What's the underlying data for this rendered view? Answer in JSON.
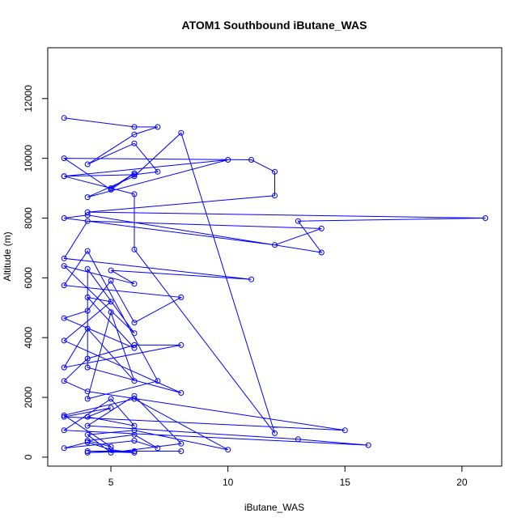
{
  "chart_data": {
    "type": "line",
    "title": "ATOM1 Southbound iButane_WAS",
    "xlabel": "iButane_WAS",
    "ylabel": "Altitude (m)",
    "xlim": [
      2.3,
      21.7
    ],
    "ylim": [
      -300,
      13700
    ],
    "x_ticks": [
      5,
      10,
      15,
      20
    ],
    "y_ticks": [
      0,
      2000,
      4000,
      6000,
      8000,
      10000,
      12000
    ],
    "grid": false,
    "legend": "none",
    "color": "#0000ff",
    "marker": "open-circle",
    "series": [
      {
        "x": [
          3,
          6,
          7,
          6,
          4,
          6,
          7,
          6,
          3,
          10,
          4,
          6,
          8,
          12,
          6,
          6,
          3,
          5,
          6,
          5,
          3,
          11,
          12,
          12,
          4,
          21,
          13,
          14,
          4,
          3,
          12,
          14,
          4,
          3,
          11,
          5,
          6,
          3,
          6,
          4,
          4,
          8,
          3,
          5,
          4,
          6,
          3,
          4,
          5,
          6,
          8,
          3,
          4,
          7,
          4,
          5,
          6,
          4,
          3,
          8,
          6,
          4,
          3,
          4,
          15,
          3,
          5,
          4,
          6,
          5,
          3,
          16,
          13,
          4,
          6,
          8,
          5,
          4,
          6,
          10,
          6,
          3,
          5,
          4,
          6,
          7,
          6,
          3,
          4,
          5,
          6,
          4,
          8,
          6,
          4
        ],
        "y": [
          11350,
          11050,
          11050,
          10800,
          9800,
          10500,
          9550,
          9450,
          9400,
          9950,
          8700,
          9400,
          10850,
          800,
          6950,
          8800,
          9400,
          9000,
          9500,
          8950,
          10000,
          9950,
          9550,
          8750,
          8200,
          8000,
          7900,
          6850,
          8100,
          8000,
          7100,
          7650,
          7900,
          6650,
          5950,
          6250,
          5800,
          6400,
          4150,
          6300,
          3000,
          2150,
          3900,
          5200,
          5350,
          3650,
          4650,
          4900,
          5900,
          4500,
          5350,
          5750,
          6900,
          2550,
          1950,
          4850,
          2550,
          4300,
          3000,
          3750,
          3750,
          3300,
          2550,
          2200,
          900,
          1350,
          1650,
          1350,
          1050,
          1950,
          900,
          400,
          600,
          1050,
          2050,
          450,
          150,
          750,
          900,
          250,
          1950,
          1400,
          350,
          550,
          750,
          300,
          550,
          300,
          500,
          250,
          150,
          200,
          200,
          200,
          150
        ]
      }
    ]
  }
}
